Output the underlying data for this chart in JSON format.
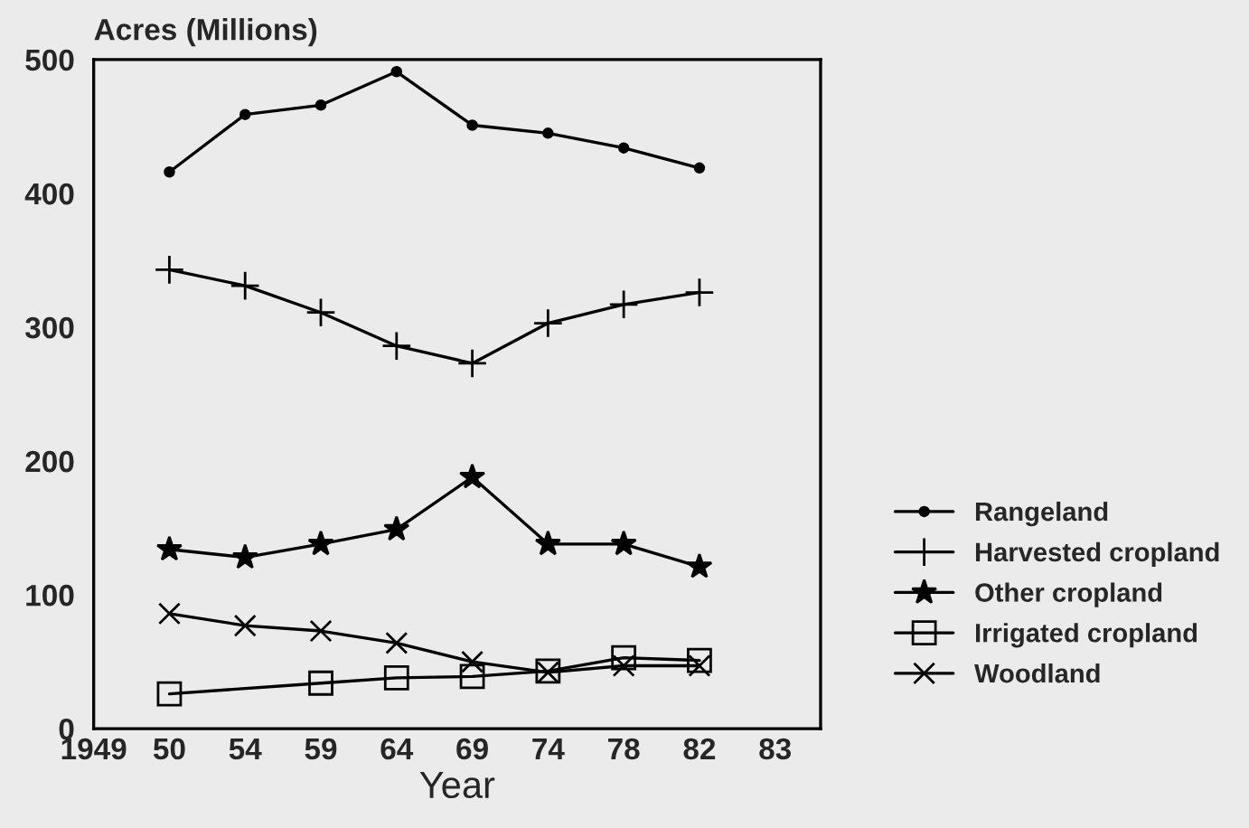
{
  "chart_data": {
    "type": "line",
    "ylabel": "Acres (Millions)",
    "xlabel": "Year",
    "categories": [
      "1949",
      "50",
      "54",
      "59",
      "64",
      "69",
      "74",
      "78",
      "82",
      "83"
    ],
    "ylim": [
      0,
      500
    ],
    "yticks": [
      0,
      100,
      200,
      300,
      400,
      500
    ],
    "grid": false,
    "legend": "right",
    "line_style": "solid",
    "series": [
      {
        "name": "Rangeland",
        "color": "#000000",
        "marker": "circle",
        "values": [
          null,
          416,
          459,
          466,
          491,
          451,
          445,
          434,
          419,
          null
        ]
      },
      {
        "name": "Harvested cropland",
        "color": "#000000",
        "marker": "plus",
        "values": [
          null,
          343,
          331,
          311,
          286,
          273,
          303,
          317,
          326,
          null
        ]
      },
      {
        "name": "Other cropland",
        "color": "#000000",
        "marker": "star",
        "values": [
          null,
          134,
          128,
          138,
          149,
          188,
          138,
          138,
          121,
          null
        ]
      },
      {
        "name": "Irrigated cropland",
        "color": "#000000",
        "marker": "square",
        "values": [
          null,
          26,
          null,
          34,
          38,
          39,
          43,
          53,
          51,
          null
        ]
      },
      {
        "name": "Woodland",
        "color": "#000000",
        "marker": "cross",
        "values": [
          null,
          86,
          77,
          73,
          64,
          50,
          42,
          47,
          47,
          null
        ]
      }
    ]
  }
}
